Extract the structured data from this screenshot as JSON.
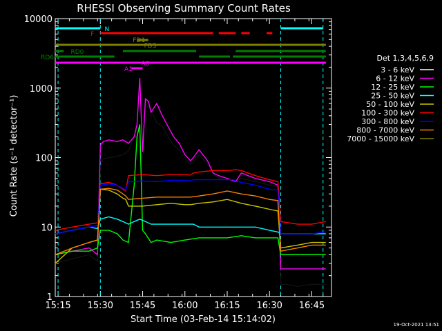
{
  "chart_data": {
    "type": "line",
    "title": "RHESSI Observing Summary Count Rates",
    "xlabel": "Start Time (03-Feb-14 15:14:02)",
    "ylabel": "Count Rate (s⁻¹ detector⁻¹)",
    "y_scale": "log",
    "ylim": [
      1,
      10000
    ],
    "xlim": [
      "15:14",
      "16:52"
    ],
    "x_ticks": [
      "15:15",
      "15:30",
      "15:45",
      "16:00",
      "16:15",
      "16:30",
      "16:45"
    ],
    "y_ticks": [
      "1",
      "10",
      "100",
      "1000",
      "10000"
    ],
    "legend_title": "Det 1,3,4,5,6,9",
    "legend_placement": "right",
    "footer_date": "19-Oct-2021 13:51",
    "series": [
      {
        "name": "3 - 6 keV",
        "color": "#000000",
        "x": [
          "15:14",
          "15:20",
          "15:26",
          "15:29",
          "15:30",
          "15:31",
          "15:33",
          "15:36",
          "15:38",
          "15:40",
          "15:42",
          "15:43",
          "15:44",
          "15:45",
          "15:46",
          "15:48",
          "15:50",
          "15:52",
          "15:54",
          "15:56",
          "15:58",
          "16:00",
          "16:02",
          "16:03",
          "16:05",
          "16:08",
          "16:10",
          "16:12",
          "16:15",
          "16:18",
          "16:20",
          "16:25",
          "16:30",
          "16:33",
          "16:34",
          "16:36",
          "16:40",
          "16:45",
          "16:50"
        ],
        "values": [
          3,
          3.5,
          4,
          3.2,
          70,
          95,
          100,
          105,
          110,
          125,
          200,
          260,
          110,
          160,
          600,
          480,
          320,
          280,
          200,
          150,
          130,
          100,
          80,
          85,
          110,
          80,
          60,
          50,
          48,
          45,
          50,
          45,
          40,
          38,
          1.5,
          1.5,
          1.4,
          1.5,
          1.5
        ]
      },
      {
        "name": "6 - 12 keV",
        "color": "#ff00ff",
        "x": [
          "15:14",
          "15:20",
          "15:26",
          "15:29",
          "15:30",
          "15:31",
          "15:33",
          "15:36",
          "15:38",
          "15:40",
          "15:42",
          "15:43",
          "15:44",
          "15:45",
          "15:46",
          "15:47",
          "15:48",
          "15:50",
          "15:52",
          "15:54",
          "15:56",
          "15:58",
          "16:00",
          "16:02",
          "16:03",
          "16:05",
          "16:08",
          "16:10",
          "16:12",
          "16:15",
          "16:18",
          "16:20",
          "16:25",
          "16:30",
          "16:33",
          "16:34",
          "16:36",
          "16:40",
          "16:45",
          "16:50"
        ],
        "values": [
          4,
          4.5,
          5,
          4,
          150,
          170,
          180,
          170,
          180,
          160,
          200,
          300,
          1400,
          120,
          700,
          650,
          450,
          600,
          400,
          280,
          200,
          160,
          110,
          90,
          100,
          130,
          90,
          60,
          55,
          50,
          45,
          60,
          50,
          45,
          40,
          2.5,
          2.5,
          2.5,
          2.5,
          2.5
        ]
      },
      {
        "name": "12 - 25 keV",
        "color": "#00ff00",
        "x": [
          "15:14",
          "15:20",
          "15:26",
          "15:29",
          "15:30",
          "15:33",
          "15:36",
          "15:38",
          "15:40",
          "15:42",
          "15:43",
          "15:44",
          "15:45",
          "15:46",
          "15:48",
          "15:50",
          "15:55",
          "16:00",
          "16:05",
          "16:10",
          "16:15",
          "16:20",
          "16:25",
          "16:30",
          "16:33",
          "16:34",
          "16:40",
          "16:45",
          "16:50"
        ],
        "values": [
          4,
          4.5,
          4.5,
          5,
          9,
          9,
          8,
          6.5,
          6,
          40,
          200,
          300,
          9,
          8,
          6,
          6.5,
          6,
          6.5,
          7,
          7,
          7,
          7.5,
          7,
          7,
          7,
          4,
          4,
          4,
          4
        ]
      },
      {
        "name": "25 - 50 keV",
        "color": "#00ffff",
        "x": [
          "15:14",
          "15:20",
          "15:26",
          "15:29",
          "15:30",
          "15:33",
          "15:36",
          "15:38",
          "15:40",
          "15:42",
          "15:44",
          "15:46",
          "15:48",
          "15:50",
          "15:55",
          "16:00",
          "16:03",
          "16:05",
          "16:10",
          "16:15",
          "16:20",
          "16:25",
          "16:30",
          "16:33",
          "16:34",
          "16:40",
          "16:45",
          "16:50"
        ],
        "values": [
          8,
          9,
          10,
          9.5,
          13,
          14,
          13,
          12,
          11,
          12,
          13,
          12,
          11,
          11,
          11,
          11,
          11,
          10,
          10,
          10,
          10,
          10,
          9,
          8.5,
          8,
          8,
          8,
          8
        ]
      },
      {
        "name": "50 - 100 keV",
        "color": "#c8c800",
        "x": [
          "15:14",
          "15:20",
          "15:26",
          "15:29",
          "15:30",
          "15:33",
          "15:36",
          "15:38",
          "15:39",
          "15:40",
          "15:45",
          "15:50",
          "15:55",
          "16:00",
          "16:02",
          "16:05",
          "16:10",
          "16:15",
          "16:20",
          "16:25",
          "16:30",
          "16:33",
          "16:34",
          "16:40",
          "16:45",
          "16:50"
        ],
        "values": [
          3,
          5,
          6,
          6.5,
          35,
          34,
          30,
          26,
          25,
          20,
          20,
          21,
          22,
          21,
          21,
          22,
          23,
          25,
          22,
          20,
          18,
          17,
          5,
          5.5,
          6,
          6
        ]
      },
      {
        "name": "100 - 300 keV",
        "color": "#ff0000",
        "x": [
          "15:14",
          "15:20",
          "15:26",
          "15:29",
          "15:30",
          "15:33",
          "15:36",
          "15:38",
          "15:39",
          "15:40",
          "15:45",
          "15:50",
          "15:55",
          "16:00",
          "16:02",
          "16:03",
          "16:05",
          "16:10",
          "16:15",
          "16:17",
          "16:18",
          "16:20",
          "16:25",
          "16:30",
          "16:33",
          "16:34",
          "16:40",
          "16:45",
          "16:50"
        ],
        "values": [
          9,
          10,
          11,
          11.5,
          42,
          44,
          40,
          35,
          33,
          55,
          57,
          55,
          57,
          57,
          56,
          60,
          62,
          65,
          65,
          66,
          67,
          65,
          55,
          48,
          45,
          12,
          11,
          11,
          12
        ]
      },
      {
        "name": "300 - 800 keV",
        "color": "#0000ff",
        "x": [
          "15:14",
          "15:20",
          "15:26",
          "15:29",
          "15:30",
          "15:33",
          "15:36",
          "15:38",
          "15:39",
          "15:40",
          "15:45",
          "15:50",
          "15:55",
          "16:00",
          "16:02",
          "16:03",
          "16:05",
          "16:10",
          "16:15",
          "16:17",
          "16:18",
          "16:20",
          "16:25",
          "16:30",
          "16:33",
          "16:34",
          "16:40",
          "16:45",
          "16:50"
        ],
        "values": [
          8,
          9,
          10,
          10.5,
          40,
          42,
          40,
          36,
          34,
          45,
          46,
          45,
          47,
          47,
          46,
          48,
          48,
          48,
          48,
          48,
          46,
          44,
          40,
          35,
          34,
          8,
          8,
          8,
          8.5
        ]
      },
      {
        "name": "800 - 7000 keV",
        "color": "#ff8000",
        "x": [
          "15:14",
          "15:20",
          "15:26",
          "15:29",
          "15:30",
          "15:33",
          "15:36",
          "15:38",
          "15:39",
          "15:40",
          "15:45",
          "15:50",
          "15:55",
          "16:00",
          "16:02",
          "16:05",
          "16:10",
          "16:15",
          "16:20",
          "16:25",
          "16:30",
          "16:33",
          "16:34",
          "16:40",
          "16:45",
          "16:50"
        ],
        "values": [
          4,
          5,
          6,
          6.5,
          35,
          36,
          34,
          30,
          28,
          25,
          26,
          27,
          27,
          27,
          27,
          28,
          30,
          33,
          30,
          28,
          25,
          24,
          4.5,
          5,
          5.5,
          5.5
        ]
      },
      {
        "name": "7000 - 15000 keV",
        "color": "#808000",
        "x": [],
        "values": []
      }
    ],
    "vertical_markers": [
      {
        "x": "15:15",
        "color": "#00ffff"
      },
      {
        "x": "15:30",
        "color": "#00ffff"
      },
      {
        "x": "16:34",
        "color": "#00ffff"
      },
      {
        "x": "16:49",
        "color": "#00ffff"
      }
    ],
    "flag_bars": [
      {
        "label": "N",
        "color": "#00ffff",
        "segments": [
          [
            "15:14",
            "15:30"
          ],
          [
            "16:34",
            "16:49"
          ]
        ]
      },
      {
        "label": "F",
        "color": "#ff0000",
        "segments": [
          [
            "15:30",
            "16:10"
          ],
          [
            "16:12",
            "16:18"
          ],
          [
            "16:20",
            "16:23"
          ],
          [
            "16:29",
            "16:31"
          ]
        ]
      },
      {
        "label": "FD1",
        "color": "#808000",
        "segments": [
          [
            "15:43",
            "15:47"
          ]
        ]
      },
      {
        "label": "FD3",
        "color": "#808000",
        "segments": [
          [
            "15:14",
            "16:50"
          ]
        ]
      },
      {
        "label": "RD0",
        "color": "#008000",
        "segments": [
          [
            "15:14",
            "15:17"
          ],
          [
            "15:38",
            "16:04"
          ],
          [
            "16:18",
            "16:50"
          ]
        ]
      },
      {
        "label": "RD6",
        "color": "#008000",
        "segments": [
          [
            "15:14",
            "15:35"
          ],
          [
            "16:05",
            "16:16"
          ],
          [
            "16:17",
            "16:50"
          ]
        ]
      },
      {
        "label": "A1",
        "color": "#ff00ff",
        "segments": [
          [
            "15:41",
            "15:45"
          ]
        ]
      },
      {
        "label": "A0",
        "color": "#ff00ff",
        "segments": [
          [
            "15:14",
            "16:50"
          ]
        ]
      }
    ]
  }
}
